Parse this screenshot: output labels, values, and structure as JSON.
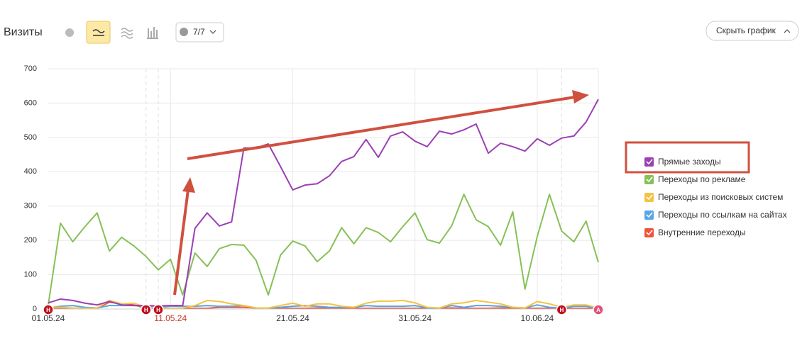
{
  "header": {
    "title": "Визиты",
    "filter": "7/7",
    "button": "Скрыть график"
  },
  "chart_data": {
    "type": "line",
    "categories": [
      "01.05.24",
      null,
      null,
      null,
      null,
      null,
      null,
      null,
      null,
      null,
      "11.05.24",
      null,
      null,
      null,
      null,
      null,
      null,
      null,
      null,
      null,
      "21.05.24",
      null,
      null,
      null,
      null,
      null,
      null,
      null,
      null,
      null,
      "31.05.24",
      null,
      null,
      null,
      null,
      null,
      null,
      null,
      null,
      null,
      "10.06.24",
      null,
      null,
      null,
      null,
      null
    ],
    "series": [
      {
        "name": "Прямые заходы",
        "color": "#9b3fb5",
        "values": [
          18,
          29,
          25,
          17,
          12,
          22,
          12,
          10,
          10,
          9,
          10,
          10,
          235,
          280,
          242,
          254,
          469,
          469,
          481,
          415,
          347,
          361,
          365,
          388,
          430,
          444,
          494,
          442,
          504,
          516,
          489,
          473,
          518,
          510,
          522,
          539,
          454,
          483,
          473,
          460,
          496,
          477,
          498,
          504,
          545,
          611
        ]
      },
      {
        "name": "Переходы по рекламе",
        "color": "#86c157",
        "values": [
          12,
          250,
          196,
          240,
          280,
          169,
          209,
          184,
          153,
          114,
          145,
          41,
          163,
          124,
          176,
          188,
          186,
          142,
          41,
          157,
          198,
          184,
          138,
          169,
          237,
          190,
          237,
          223,
          196,
          240,
          280,
          202,
          192,
          242,
          334,
          260,
          240,
          186,
          283,
          58,
          211,
          334,
          227,
          196,
          256,
          136
        ]
      },
      {
        "name": "Переходы из поисковых систем",
        "color": "#f5c342",
        "values": [
          5,
          5,
          3,
          2,
          3,
          25,
          15,
          17,
          5,
          3,
          2,
          3,
          10,
          25,
          22,
          15,
          10,
          3,
          3,
          10,
          17,
          8,
          15,
          15,
          8,
          5,
          17,
          23,
          23,
          25,
          18,
          5,
          3,
          15,
          18,
          25,
          20,
          15,
          5,
          3,
          22,
          15,
          5,
          12,
          12,
          3
        ]
      },
      {
        "name": "Переходы по ссылкам на сайтах",
        "color": "#5aa5e6",
        "values": [
          3,
          8,
          10,
          5,
          3,
          10,
          10,
          10,
          8,
          5,
          8,
          8,
          8,
          10,
          8,
          8,
          10,
          3,
          3,
          5,
          8,
          10,
          8,
          5,
          5,
          5,
          10,
          8,
          8,
          8,
          10,
          3,
          3,
          10,
          5,
          10,
          10,
          8,
          5,
          3,
          12,
          5,
          3,
          8,
          8,
          2
        ]
      },
      {
        "name": "Внутренние переходы",
        "color": "#f0533a",
        "values": [
          2,
          2,
          2,
          2,
          2,
          20,
          15,
          12,
          2,
          2,
          2,
          2,
          2,
          2,
          5,
          5,
          5,
          3,
          2,
          2,
          2,
          2,
          3,
          2,
          2,
          2,
          2,
          2,
          2,
          2,
          2,
          2,
          2,
          3,
          2,
          2,
          2,
          3,
          2,
          2,
          2,
          2,
          2,
          2,
          2,
          2
        ]
      }
    ],
    "ylim": [
      0,
      700
    ],
    "yticks": [
      0,
      100,
      200,
      300,
      400,
      500,
      600,
      700
    ],
    "grid": true,
    "events": [
      {
        "label": "Н",
        "at": 0,
        "color": "#c0101e"
      },
      {
        "label": "Н",
        "at": 8,
        "color": "#c0101e"
      },
      {
        "label": "Н",
        "at": 9,
        "color": "#c0101e"
      },
      {
        "label": "Н",
        "at": 42,
        "color": "#c0101e"
      },
      {
        "label": "А",
        "at": 45,
        "color": "#e0507a"
      }
    ]
  }
}
